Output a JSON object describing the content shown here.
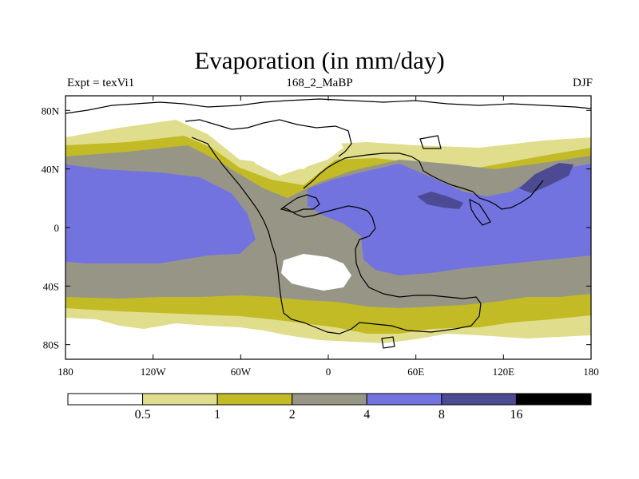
{
  "chart_data": {
    "type": "heatmap",
    "title": "Evaporation (in mm/day)",
    "left_subtitle": "Expt = texVi1",
    "center_subtitle": "168_2_MaBP",
    "right_subtitle": "DJF",
    "x_ticks": [
      "180",
      "120W",
      "60W",
      "0",
      "60E",
      "120E",
      "180"
    ],
    "x_tick_values": [
      -180,
      -120,
      -60,
      0,
      60,
      120,
      180
    ],
    "y_ticks": [
      "80N",
      "40N",
      "0",
      "40S",
      "80S"
    ],
    "y_tick_values": [
      80,
      40,
      0,
      -40,
      -80
    ],
    "xlim": [
      -180,
      180
    ],
    "ylim": [
      -90,
      90
    ],
    "levels": [
      "0.5",
      "1",
      "2",
      "4",
      "8",
      "16"
    ],
    "level_colors": [
      "#ffffff",
      "#e0de8c",
      "#c2bb25",
      "#979686",
      "#7373df",
      "#4b4a93",
      "#000000"
    ]
  }
}
